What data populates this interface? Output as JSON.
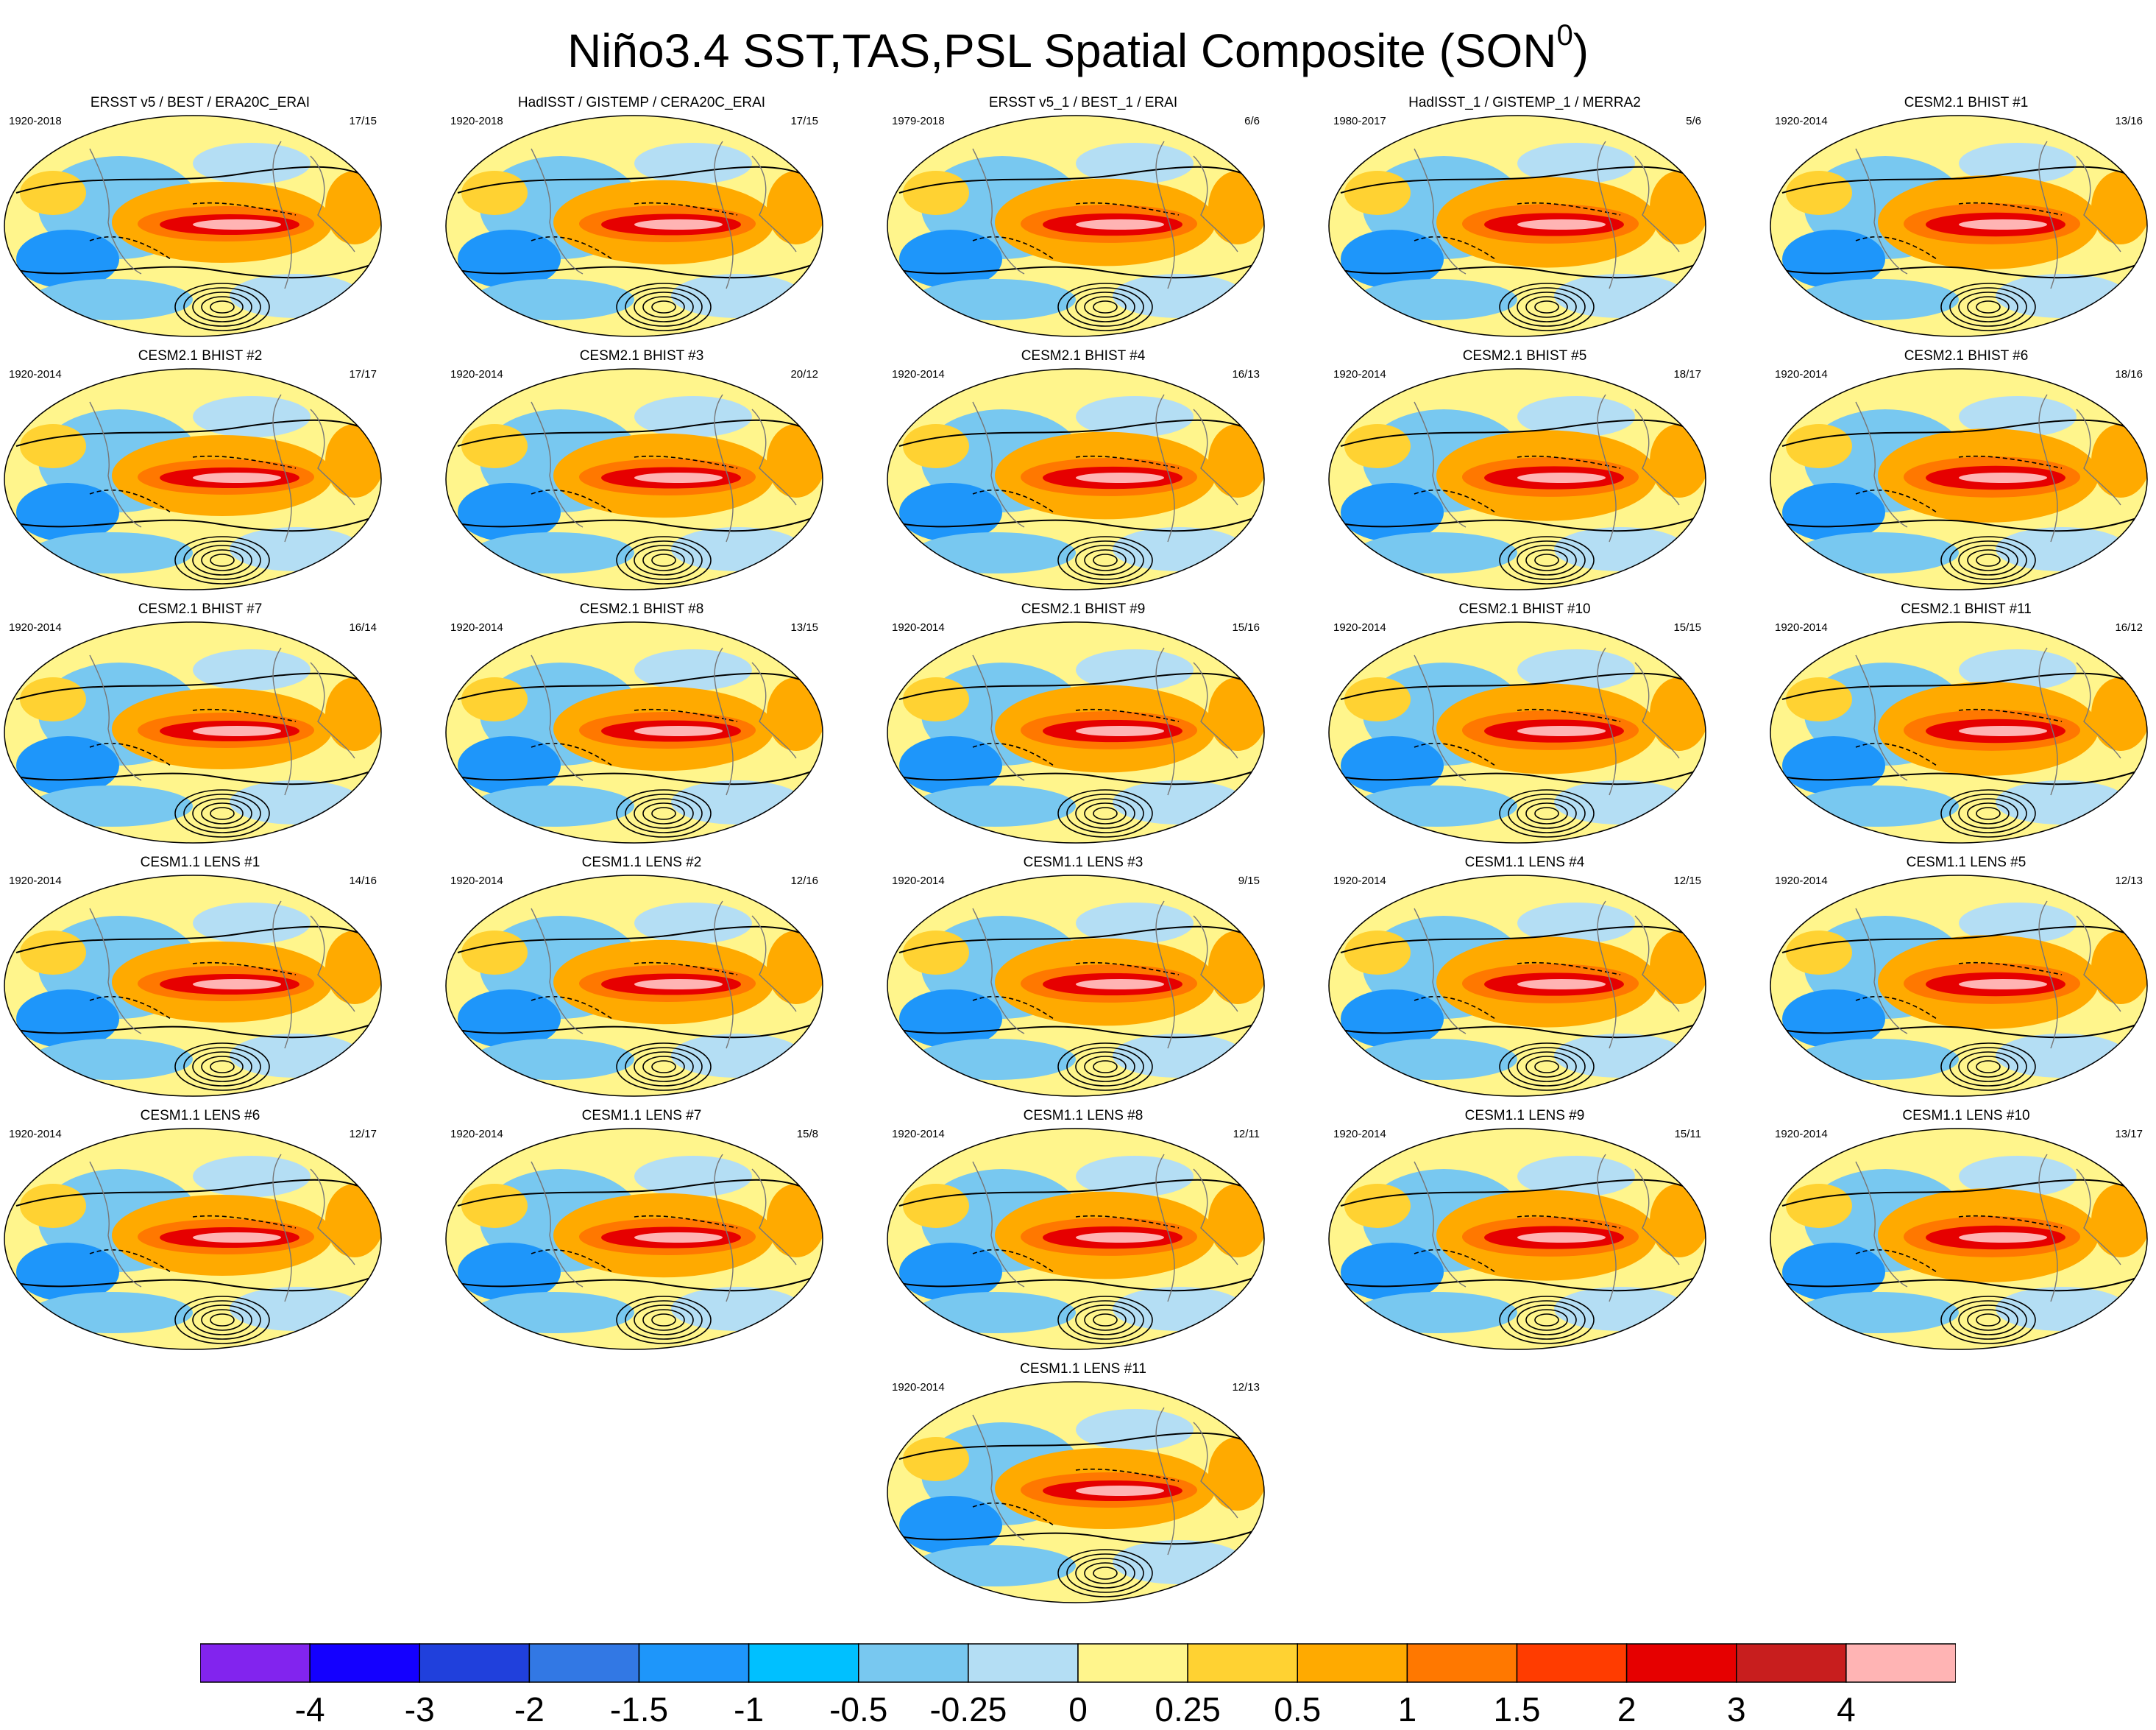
{
  "title": {
    "text": "Niño3.4 SST,TAS,PSL Spatial Composite (SON",
    "superscript": "0",
    "closing": ")"
  },
  "panels": [
    {
      "title": "ERSST v5 / BEST / ERA20C_ERAI",
      "years": "1920-2018",
      "count": "17/15"
    },
    {
      "title": "HadISST / GISTEMP / CERA20C_ERAI",
      "years": "1920-2018",
      "count": "17/15"
    },
    {
      "title": "ERSST v5_1 / BEST_1 / ERAI",
      "years": "1979-2018",
      "count": "6/6"
    },
    {
      "title": "HadISST_1 / GISTEMP_1 / MERRA2",
      "years": "1980-2017",
      "count": "5/6"
    },
    {
      "title": "CESM2.1 BHIST #1",
      "years": "1920-2014",
      "count": "13/16"
    },
    {
      "title": "CESM2.1 BHIST #2",
      "years": "1920-2014",
      "count": "17/17"
    },
    {
      "title": "CESM2.1 BHIST #3",
      "years": "1920-2014",
      "count": "20/12"
    },
    {
      "title": "CESM2.1 BHIST #4",
      "years": "1920-2014",
      "count": "16/13"
    },
    {
      "title": "CESM2.1 BHIST #5",
      "years": "1920-2014",
      "count": "18/17"
    },
    {
      "title": "CESM2.1 BHIST #6",
      "years": "1920-2014",
      "count": "18/16"
    },
    {
      "title": "CESM2.1 BHIST #7",
      "years": "1920-2014",
      "count": "16/14"
    },
    {
      "title": "CESM2.1 BHIST #8",
      "years": "1920-2014",
      "count": "13/15"
    },
    {
      "title": "CESM2.1 BHIST #9",
      "years": "1920-2014",
      "count": "15/16"
    },
    {
      "title": "CESM2.1 BHIST #10",
      "years": "1920-2014",
      "count": "15/15"
    },
    {
      "title": "CESM2.1 BHIST #11",
      "years": "1920-2014",
      "count": "16/12"
    },
    {
      "title": "CESM1.1 LENS #1",
      "years": "1920-2014",
      "count": "14/16"
    },
    {
      "title": "CESM1.1 LENS #2",
      "years": "1920-2014",
      "count": "12/16"
    },
    {
      "title": "CESM1.1 LENS #3",
      "years": "1920-2014",
      "count": "9/15"
    },
    {
      "title": "CESM1.1 LENS #4",
      "years": "1920-2014",
      "count": "12/15"
    },
    {
      "title": "CESM1.1 LENS #5",
      "years": "1920-2014",
      "count": "12/13"
    },
    {
      "title": "CESM1.1 LENS #6",
      "years": "1920-2014",
      "count": "12/17"
    },
    {
      "title": "CESM1.1 LENS #7",
      "years": "1920-2014",
      "count": "15/8"
    },
    {
      "title": "CESM1.1 LENS #8",
      "years": "1920-2014",
      "count": "12/11"
    },
    {
      "title": "CESM1.1 LENS #9",
      "years": "1920-2014",
      "count": "15/11"
    },
    {
      "title": "CESM1.1 LENS #10",
      "years": "1920-2014",
      "count": "13/17"
    },
    {
      "title": "CESM1.1 LENS #11",
      "years": "1920-2014",
      "count": "12/13"
    }
  ],
  "colorbar": {
    "colors": [
      "#8224ee",
      "#1400ff",
      "#2040dc",
      "#3278e4",
      "#1e96fa",
      "#00c0ff",
      "#78c8f0",
      "#b4def4",
      "#fff58c",
      "#ffd232",
      "#ffaa00",
      "#ff7800",
      "#ff3c00",
      "#e60000",
      "#c81e1e",
      "#ffb4b4"
    ],
    "labels": [
      "-4",
      "-3",
      "-2",
      "-1.5",
      "-1",
      "-0.5",
      "-0.25",
      "0",
      "0.25",
      "0.5",
      "1",
      "1.5",
      "2",
      "3",
      "4"
    ]
  }
}
